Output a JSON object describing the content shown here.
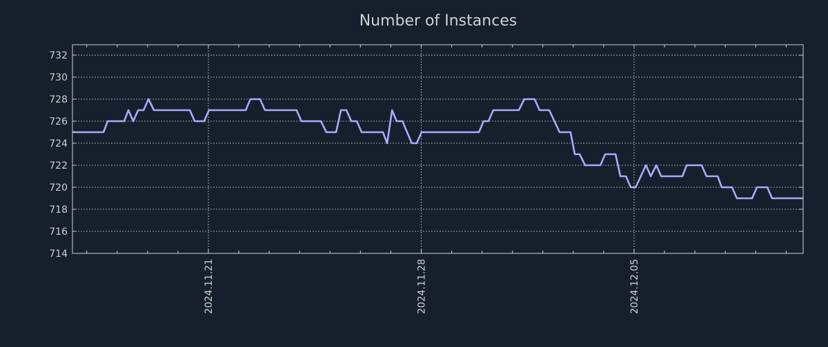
{
  "chart_data": {
    "type": "line",
    "title": "Number of Instances",
    "xlabel": "",
    "ylabel": "",
    "x_unit": "days relative to 2024.11.21",
    "xlim": [
      -4.47,
      19.56
    ],
    "ylim": [
      714,
      732.94
    ],
    "grid": true,
    "colors": {
      "background": "#161f2c",
      "line": "#aaaaff",
      "grid": "#c8c8c8",
      "axis": "#d0d0d0"
    },
    "y_ticks": [
      714,
      716,
      718,
      720,
      722,
      724,
      726,
      728,
      730,
      732
    ],
    "x_ticks": [
      {
        "value": 0,
        "label": "2024.11.21"
      },
      {
        "value": 7,
        "label": "2024.11.28"
      },
      {
        "value": 14,
        "label": "2024.12.05"
      }
    ],
    "series": [
      {
        "name": "Number of Instances",
        "x": [
          -4.47,
          -3.45,
          -3.31,
          -2.77,
          -2.63,
          -2.47,
          -2.31,
          -2.13,
          -1.97,
          -1.79,
          -0.61,
          -0.45,
          -0.14,
          0.02,
          1.23,
          1.38,
          1.7,
          1.86,
          2.9,
          3.06,
          3.7,
          3.88,
          4.2,
          4.36,
          4.54,
          4.7,
          4.88,
          5.04,
          5.74,
          5.88,
          6.04,
          6.19,
          6.38,
          6.69,
          6.85,
          7.01,
          8.9,
          9.05,
          9.21,
          9.37,
          10.21,
          10.39,
          10.73,
          10.89,
          11.21,
          11.55,
          11.91,
          12.05,
          12.21,
          12.39,
          12.89,
          13.05,
          13.39,
          13.55,
          13.73,
          13.89,
          14.05,
          14.39,
          14.55,
          14.73,
          14.89,
          15.59,
          15.73,
          16.22,
          16.38,
          16.75,
          16.88,
          17.22,
          17.38,
          17.88,
          18.04,
          18.38,
          18.54,
          19.56
        ],
        "y": [
          725,
          725,
          726,
          726,
          727,
          726,
          727,
          727,
          728,
          727,
          727,
          726,
          726,
          727,
          727,
          728,
          728,
          727,
          727,
          726,
          726,
          725,
          725,
          727,
          727,
          726,
          726,
          725,
          725,
          724,
          727,
          726,
          726,
          724,
          724,
          725,
          725,
          726,
          726,
          727,
          727,
          728,
          728,
          727,
          727,
          725,
          725,
          723,
          723,
          722,
          722,
          723,
          723,
          721,
          721,
          720,
          720,
          722,
          721,
          722,
          721,
          721,
          722,
          722,
          721,
          721,
          720,
          720,
          719,
          719,
          720,
          720,
          719,
          719
        ]
      }
    ]
  }
}
